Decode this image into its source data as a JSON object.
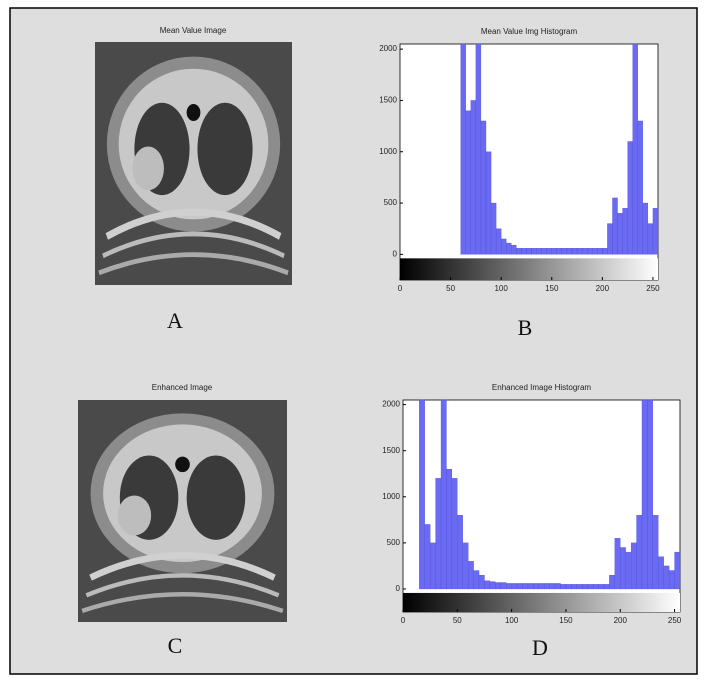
{
  "images": [
    {
      "title": "Mean Value Image",
      "label": "A"
    },
    {
      "title": "Enhanced Image",
      "label": "C"
    }
  ],
  "chart_data": [
    {
      "type": "histogram",
      "title": "Mean Value Img Histogram",
      "label": "B",
      "color": "#6a6af2",
      "bins": [
        0,
        5,
        10,
        15,
        20,
        25,
        30,
        35,
        40,
        45,
        50,
        55,
        60,
        65,
        70,
        75,
        80,
        85,
        90,
        95,
        100,
        105,
        110,
        115,
        120,
        125,
        130,
        135,
        140,
        145,
        150,
        155,
        160,
        165,
        170,
        175,
        180,
        185,
        190,
        195,
        200,
        205,
        210,
        215,
        220,
        225,
        230,
        235,
        240,
        245,
        250,
        255
      ],
      "values": [
        0,
        0,
        0,
        0,
        0,
        0,
        0,
        0,
        0,
        0,
        0,
        0,
        2050,
        1400,
        1500,
        2050,
        1300,
        1000,
        500,
        250,
        150,
        110,
        90,
        60,
        60,
        60,
        60,
        60,
        60,
        60,
        60,
        60,
        60,
        60,
        60,
        60,
        60,
        60,
        60,
        60,
        60,
        300,
        550,
        400,
        450,
        1100,
        2050,
        1300,
        500,
        300,
        450
      ],
      "xlim": [
        0,
        255
      ],
      "ylim": [
        -250,
        2050
      ],
      "xticks": [
        0,
        50,
        100,
        150,
        200,
        250
      ],
      "yticks": [
        0,
        500,
        1000,
        1500,
        2000
      ]
    },
    {
      "type": "histogram",
      "title": "Enhanced Image Histogram",
      "label": "D",
      "color": "#6a6af2",
      "bins": [
        0,
        5,
        10,
        15,
        20,
        25,
        30,
        35,
        40,
        45,
        50,
        55,
        60,
        65,
        70,
        75,
        80,
        85,
        90,
        95,
        100,
        105,
        110,
        115,
        120,
        125,
        130,
        135,
        140,
        145,
        150,
        155,
        160,
        165,
        170,
        175,
        180,
        185,
        190,
        195,
        200,
        205,
        210,
        215,
        220,
        225,
        230,
        235,
        240,
        245,
        250,
        255
      ],
      "values": [
        0,
        0,
        0,
        2050,
        700,
        500,
        1200,
        2050,
        1300,
        1200,
        800,
        500,
        300,
        200,
        150,
        90,
        80,
        70,
        70,
        60,
        60,
        60,
        60,
        60,
        60,
        60,
        60,
        60,
        60,
        50,
        50,
        50,
        50,
        50,
        50,
        50,
        50,
        50,
        150,
        550,
        450,
        400,
        500,
        800,
        2050,
        2050,
        800,
        350,
        250,
        200,
        400
      ],
      "xlim": [
        0,
        255
      ],
      "ylim": [
        -250,
        2050
      ],
      "xticks": [
        0,
        50,
        100,
        150,
        200,
        250
      ],
      "yticks": [
        0,
        500,
        1000,
        1500,
        2000
      ]
    }
  ]
}
